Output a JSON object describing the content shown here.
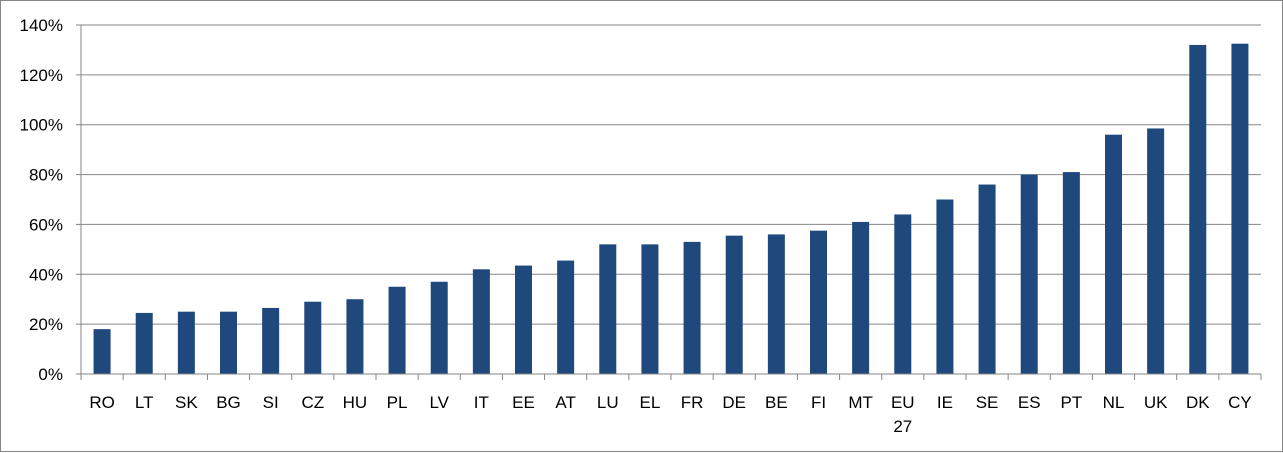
{
  "chart_data": {
    "type": "bar",
    "title": "",
    "xlabel": "",
    "ylabel": "",
    "ylim": [
      0,
      140
    ],
    "y_tick_step": 20,
    "y_tick_format": "percent",
    "grid": "horizontal",
    "legend": "none",
    "bar_color": "#1F497D",
    "gridline_color": "#868686",
    "categories": [
      "RO",
      "LT",
      "SK",
      "BG",
      "SI",
      "CZ",
      "HU",
      "PL",
      "LV",
      "IT",
      "EE",
      "AT",
      "LU",
      "EL",
      "FR",
      "DE",
      "BE",
      "FI",
      "MT",
      "EU 27",
      "IE",
      "SE",
      "ES",
      "PT",
      "NL",
      "UK",
      "DK",
      "CY"
    ],
    "values": [
      18,
      24.5,
      25,
      25,
      26.5,
      29,
      30,
      35,
      37,
      42,
      43.5,
      45.5,
      52,
      52,
      53,
      55.5,
      56,
      57.5,
      61,
      64,
      70,
      76,
      80,
      81,
      96,
      98.5,
      132,
      132.5
    ]
  }
}
